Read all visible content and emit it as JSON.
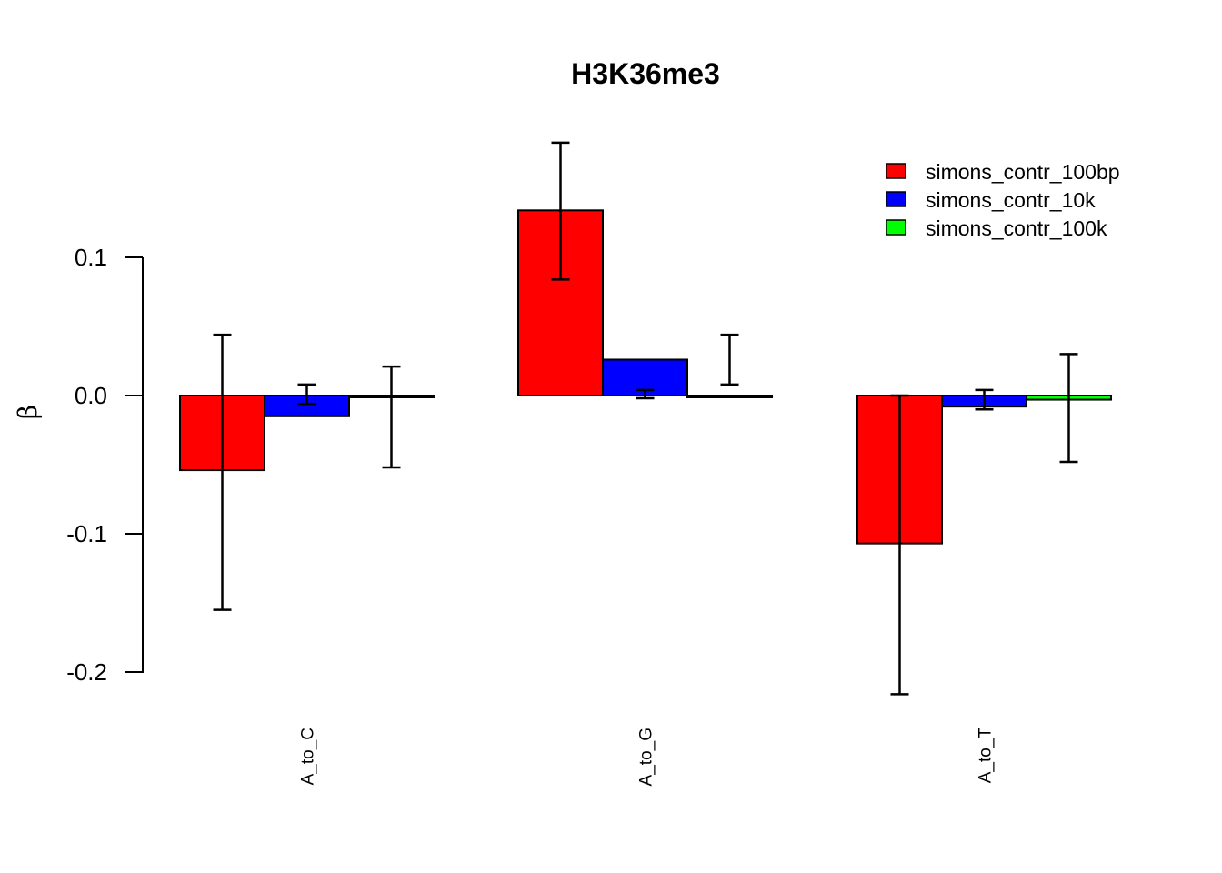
{
  "chart_data": {
    "type": "bar",
    "title": "H3K36me3",
    "xlabel": "",
    "ylabel": "β",
    "ylim": [
      -0.2,
      0.1
    ],
    "yticks": [
      0.1,
      0.0,
      -0.1,
      -0.2
    ],
    "ytick_labels": [
      "0.1",
      "0.0",
      "-0.1",
      "-0.2"
    ],
    "categories": [
      "A_to_C",
      "A_to_G",
      "A_to_T"
    ],
    "legend_position": "top-right",
    "grid": false,
    "series": [
      {
        "name": "simons_contr_100bp",
        "color": "#ff0000",
        "values": [
          -0.054,
          0.134,
          -0.107
        ],
        "err_low": [
          -0.155,
          0.084,
          -0.216
        ],
        "err_high": [
          0.044,
          0.183,
          0.0
        ]
      },
      {
        "name": "simons_contr_10k",
        "color": "#0000ff",
        "values": [
          -0.015,
          0.026,
          -0.008
        ],
        "err_low": [
          -0.006,
          -0.002,
          -0.01
        ],
        "err_high": [
          0.008,
          0.004,
          0.004
        ]
      },
      {
        "name": "simons_contr_100k",
        "color": "#00ff00",
        "values": [
          0.0,
          0.0,
          -0.003
        ],
        "err_low": [
          -0.052,
          0.008,
          -0.048
        ],
        "err_high": [
          0.021,
          0.044,
          0.03
        ]
      }
    ]
  }
}
